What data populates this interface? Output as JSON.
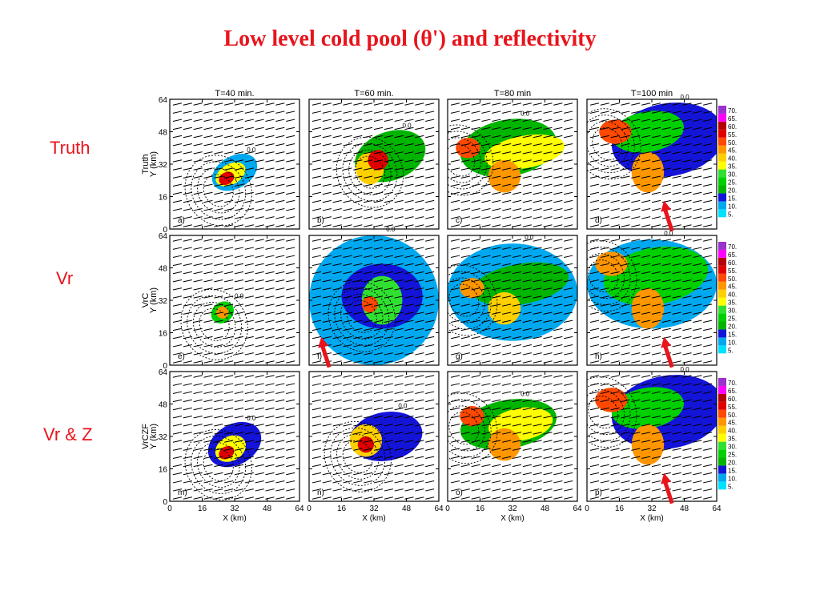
{
  "title": "Low level cold pool (θ') and reflectivity",
  "rows": [
    {
      "label": "Truth",
      "ylabel": "Truth\nY (km)"
    },
    {
      "label": "Vr",
      "ylabel": "VrC\nY (km)"
    },
    {
      "label": "Vr & Z",
      "ylabel": "VrCZF\nY (km)"
    }
  ],
  "columns": [
    "T=40 min.",
    "T=60 min.",
    "T=80 min",
    "T=100 min"
  ],
  "panel_letters": [
    "a)",
    "b)",
    "c)",
    "d)",
    "e)",
    "f)",
    "g)",
    "h)",
    "m)",
    "n)",
    "o)",
    "p)"
  ],
  "chart_data": {
    "type": "heatmap",
    "title": "Low level cold pool (θ') and reflectivity",
    "xlabel": "X (km)",
    "ylabel": "Y (km)",
    "xlim": [
      0,
      64
    ],
    "ylim": [
      0,
      64
    ],
    "xticks": [
      0,
      16,
      32,
      48,
      64
    ],
    "yticks": [
      0,
      16,
      32,
      48,
      64
    ],
    "colorbar": {
      "levels": [
        5,
        10,
        15,
        20,
        25,
        30,
        35,
        40,
        45,
        50,
        55,
        60,
        65,
        70
      ],
      "labels": [
        "5.",
        "10.",
        "15.",
        "20.",
        "25.",
        "30.",
        "35.",
        "40.",
        "45.",
        "50.",
        "55.",
        "60.",
        "65.",
        "70."
      ],
      "colors": [
        "#00e0ff",
        "#00a8f0",
        "#1414d8",
        "#00b400",
        "#00d000",
        "#30e030",
        "#ffff00",
        "#ffd000",
        "#ff9600",
        "#ff4800",
        "#e00000",
        "#b40000",
        "#ff00ff",
        "#9a32cd"
      ]
    },
    "contour_label": "0.0",
    "panels": [
      {
        "letter": "a)",
        "cells": [
          [
            32,
            28,
            12,
            8,
            10,
            -30
          ],
          [
            30,
            27,
            8,
            5,
            35,
            -30
          ],
          [
            28,
            25,
            4,
            3,
            55,
            -30
          ]
        ]
      },
      {
        "letter": "b)",
        "cells": [
          [
            40,
            36,
            18,
            12,
            20,
            -20
          ],
          [
            30,
            30,
            7,
            8,
            40,
            0
          ],
          [
            34,
            34,
            5,
            5,
            55,
            0
          ]
        ]
      },
      {
        "letter": "c)",
        "cells": [
          [
            30,
            40,
            24,
            14,
            20,
            -10
          ],
          [
            38,
            38,
            20,
            8,
            35,
            -10
          ],
          [
            28,
            26,
            8,
            8,
            45,
            0
          ],
          [
            10,
            40,
            6,
            5,
            50,
            0
          ]
        ]
      },
      {
        "letter": "d)",
        "cells": [
          [
            40,
            44,
            28,
            18,
            15,
            -10
          ],
          [
            30,
            48,
            18,
            10,
            25,
            -10
          ],
          [
            30,
            28,
            8,
            10,
            45,
            0
          ],
          [
            14,
            48,
            8,
            6,
            50,
            0
          ]
        ]
      },
      {
        "letter": "e)",
        "cells": [
          [
            26,
            26,
            6,
            5,
            25,
            -40
          ],
          [
            26,
            26,
            3,
            3,
            45,
            -40
          ]
        ]
      },
      {
        "letter": "f)",
        "cells": [
          [
            32,
            32,
            32,
            32,
            10,
            0
          ],
          [
            36,
            34,
            20,
            16,
            15,
            0
          ],
          [
            36,
            32,
            10,
            12,
            30,
            0
          ],
          [
            30,
            30,
            4,
            4,
            50,
            0
          ]
        ]
      },
      {
        "letter": "g)",
        "cells": [
          [
            32,
            36,
            32,
            24,
            10,
            0
          ],
          [
            36,
            40,
            24,
            10,
            20,
            -10
          ],
          [
            28,
            28,
            8,
            8,
            40,
            0
          ],
          [
            12,
            38,
            6,
            5,
            45,
            0
          ]
        ]
      },
      {
        "letter": "h)",
        "cells": [
          [
            32,
            40,
            32,
            22,
            10,
            0
          ],
          [
            34,
            44,
            26,
            14,
            25,
            -10
          ],
          [
            30,
            28,
            8,
            10,
            45,
            0
          ],
          [
            12,
            50,
            8,
            6,
            45,
            0
          ]
        ]
      },
      {
        "letter": "m)",
        "cells": [
          [
            32,
            28,
            14,
            10,
            15,
            -30
          ],
          [
            30,
            26,
            8,
            6,
            35,
            -30
          ],
          [
            28,
            24,
            4,
            3,
            55,
            -30
          ]
        ]
      },
      {
        "letter": "n)",
        "cells": [
          [
            38,
            32,
            18,
            12,
            15,
            -10
          ],
          [
            28,
            30,
            8,
            8,
            40,
            0
          ],
          [
            28,
            28,
            4,
            4,
            55,
            0
          ]
        ]
      },
      {
        "letter": "o)",
        "cells": [
          [
            30,
            38,
            24,
            12,
            20,
            -10
          ],
          [
            36,
            38,
            16,
            8,
            35,
            -10
          ],
          [
            28,
            28,
            8,
            8,
            45,
            0
          ],
          [
            12,
            42,
            6,
            5,
            50,
            0
          ]
        ]
      },
      {
        "letter": "p)",
        "cells": [
          [
            40,
            44,
            28,
            18,
            15,
            -10
          ],
          [
            30,
            46,
            18,
            10,
            25,
            -10
          ],
          [
            30,
            28,
            8,
            10,
            45,
            0
          ],
          [
            12,
            50,
            8,
            6,
            50,
            0
          ]
        ]
      }
    ],
    "arrows": [
      "d)",
      "f)",
      "h)",
      "p)"
    ]
  }
}
